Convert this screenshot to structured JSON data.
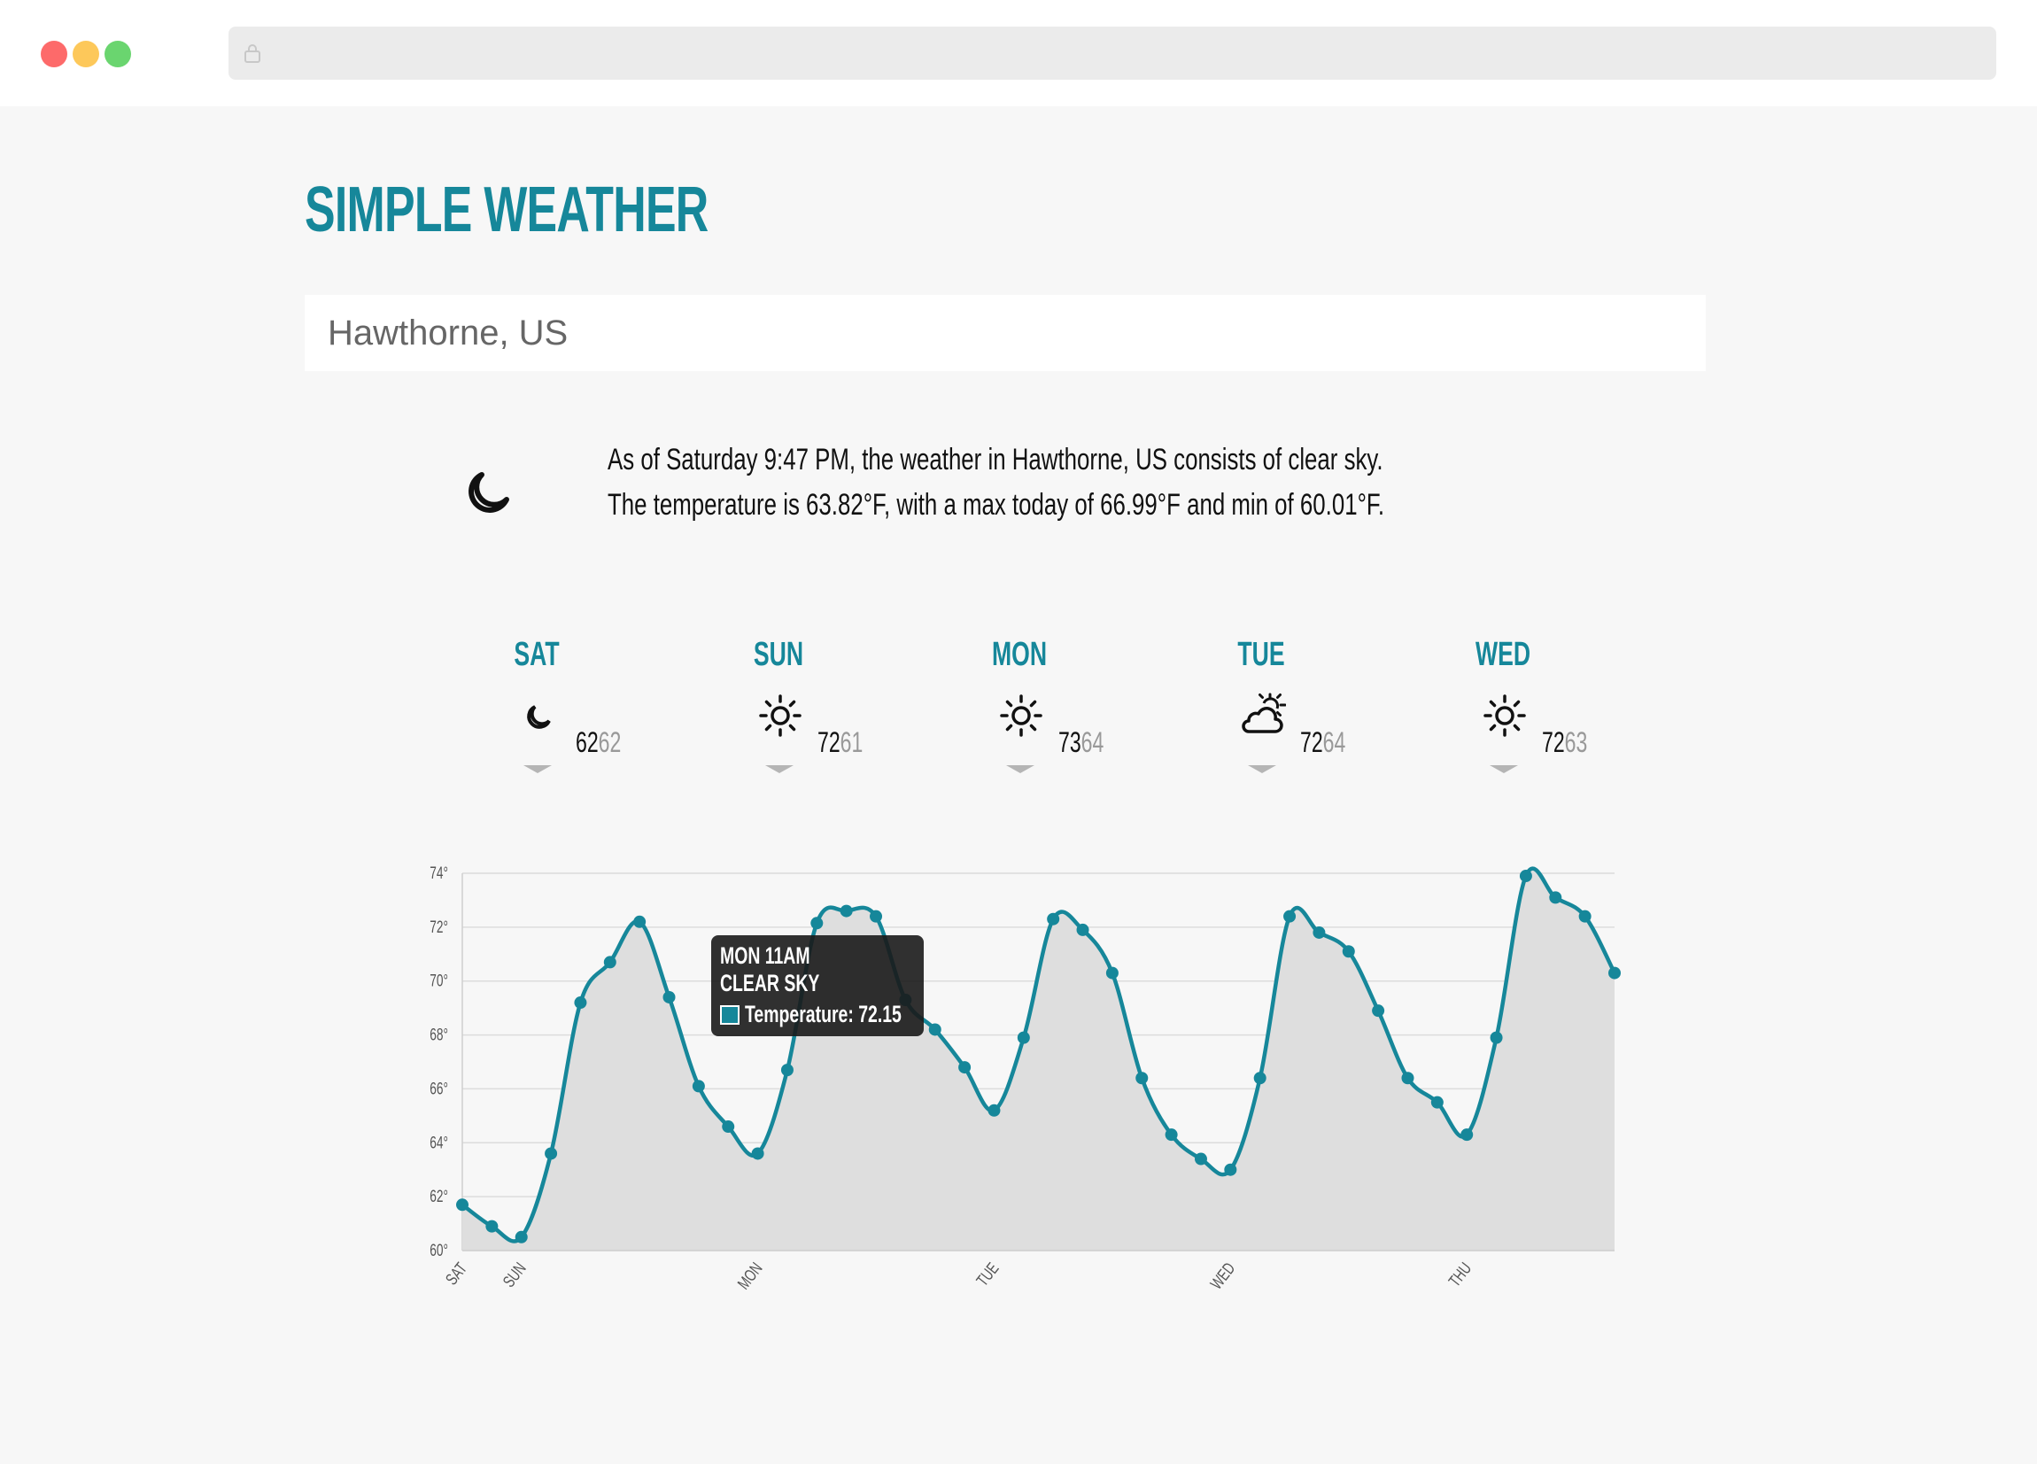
{
  "app": {
    "title": "SIMPLE WEATHER"
  },
  "search": {
    "value": "Hawthorne, US"
  },
  "current": {
    "icon": "moon-icon",
    "line1": "As of Saturday 9:47 PM, the weather in Hawthorne, US consists of clear sky.",
    "line2": "The temperature is 63.82°F, with a max today of 66.99°F and min of 60.01°F."
  },
  "forecast": [
    {
      "day": "SAT",
      "icon": "moon-icon",
      "hi": "62",
      "lo": "62"
    },
    {
      "day": "SUN",
      "icon": "sun-icon",
      "hi": "72",
      "lo": "61"
    },
    {
      "day": "MON",
      "icon": "sun-icon",
      "hi": "73",
      "lo": "64"
    },
    {
      "day": "TUE",
      "icon": "partly-cloudy-icon",
      "hi": "72",
      "lo": "64"
    },
    {
      "day": "WED",
      "icon": "sun-icon",
      "hi": "72",
      "lo": "63"
    }
  ],
  "tooltip": {
    "title": "MON 11AM",
    "subtitle": "CLEAR SKY",
    "value": "Temperature: 72.15"
  },
  "chart_data": {
    "type": "area",
    "series": [
      {
        "values": [
          61.7,
          60.9,
          60.5,
          63.6,
          69.2,
          70.7,
          72.2,
          69.4,
          66.1,
          64.6,
          63.6,
          66.7,
          72.15,
          72.6,
          72.4,
          69.3,
          68.2,
          66.8,
          65.2,
          67.9,
          72.3,
          71.9,
          70.3,
          66.4,
          64.3,
          63.4,
          63.0,
          66.4,
          72.4,
          71.8,
          71.1,
          68.9,
          66.4,
          65.5,
          64.3,
          67.9,
          73.9,
          73.1,
          72.4,
          70.3
        ]
      }
    ],
    "x_labels": [
      "SAT",
      "SUN",
      "MON",
      "TUE",
      "WED",
      "THU"
    ],
    "x_label_index": [
      0,
      2,
      10,
      18,
      26,
      34
    ],
    "y_ticks": [
      "60°",
      "62°",
      "64°",
      "66°",
      "68°",
      "70°",
      "72°",
      "74°"
    ],
    "ylim": [
      60,
      74
    ],
    "grid": true,
    "color": "#16879a",
    "fill": "#dedede"
  }
}
